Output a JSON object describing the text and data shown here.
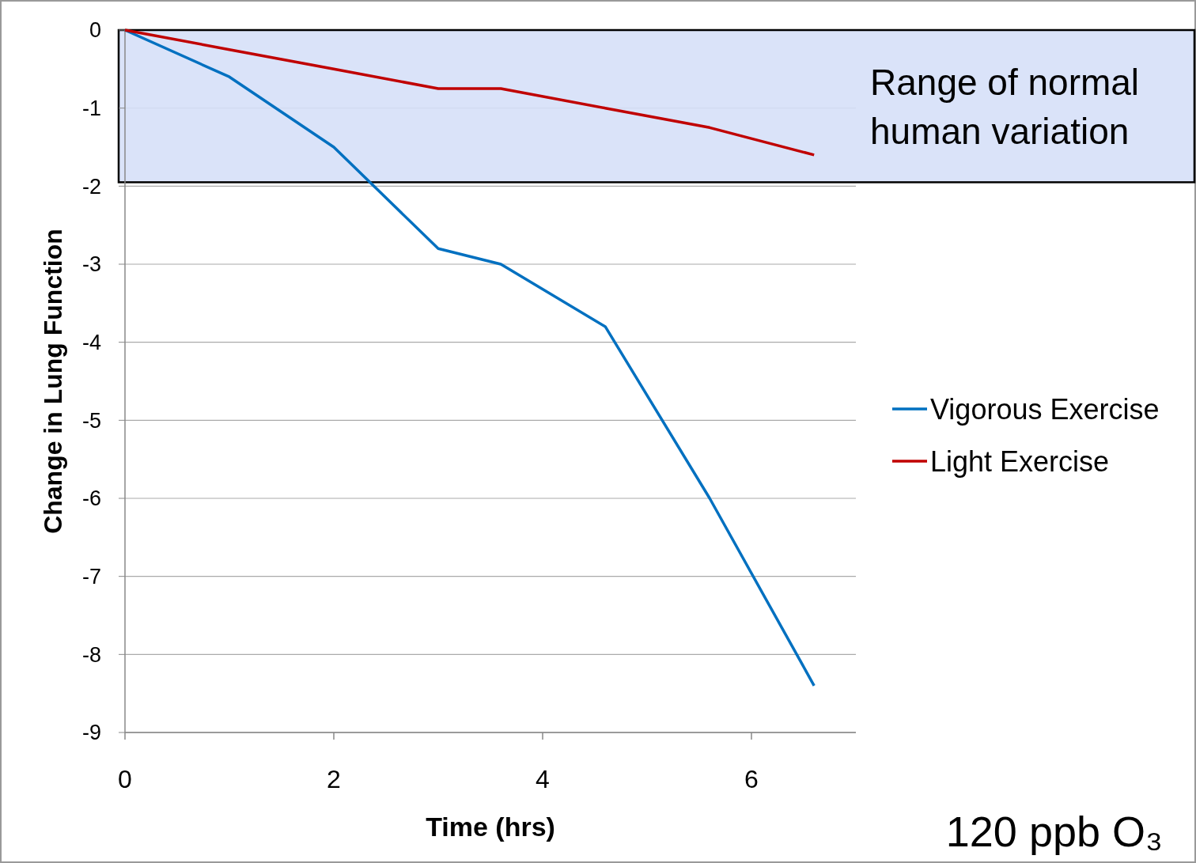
{
  "chart_data": {
    "type": "line",
    "xlabel": "Time (hrs)",
    "ylabel": "Change in Lung Function",
    "x": [
      0,
      1,
      2,
      3,
      3.6,
      4.6,
      5.6,
      6.6
    ],
    "series": [
      {
        "name": "Vigorous Exercise",
        "color": "#0070c0",
        "values": [
          0,
          -0.6,
          -1.5,
          -2.8,
          -3.0,
          -3.8,
          -6.0,
          -8.4
        ]
      },
      {
        "name": "Light Exercise",
        "color": "#c00000",
        "values": [
          0,
          -0.25,
          -0.5,
          -0.75,
          -0.75,
          -1.0,
          -1.25,
          -1.6
        ]
      }
    ],
    "xlim": [
      0,
      7
    ],
    "xticks": [
      0,
      2,
      4,
      6
    ],
    "ylim": [
      -9,
      0
    ],
    "yticks": [
      0,
      -1,
      -2,
      -3,
      -4,
      -5,
      -6,
      -7,
      -8,
      -9
    ],
    "bands": [
      {
        "axis": "y",
        "from": -1.95,
        "to": 0,
        "label": "Range of normal human variation",
        "color": "#d6e0f8"
      }
    ],
    "annotations": [
      "120 ppb O₃"
    ],
    "grid": "y",
    "legend": "right",
    "marker": "none",
    "line_style": "solid"
  }
}
